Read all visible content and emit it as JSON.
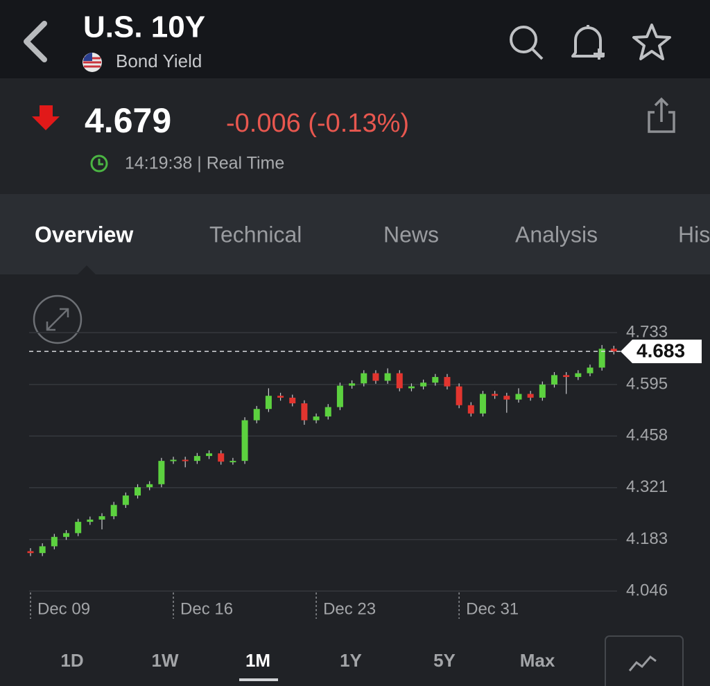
{
  "header": {
    "title": "U.S. 10Y",
    "subtitle": "Bond Yield"
  },
  "quote": {
    "price": "4.679",
    "change": "-0.006 (-0.13%)",
    "time": "14:19:38 | Real Time"
  },
  "tabs": [
    "Overview",
    "Technical",
    "News",
    "Analysis",
    "His"
  ],
  "ranges": [
    "1D",
    "1W",
    "1M",
    "1Y",
    "5Y",
    "Max"
  ],
  "chart_data": {
    "type": "candlestick",
    "categories": [
      "Dec 09",
      null,
      null,
      null,
      null,
      null,
      null,
      null,
      null,
      null,
      null,
      null,
      "Dec 16",
      null,
      null,
      null,
      null,
      null,
      null,
      null,
      null,
      null,
      null,
      null,
      "Dec 23",
      null,
      null,
      null,
      null,
      null,
      null,
      null,
      null,
      null,
      null,
      null,
      "Dec 31",
      null,
      null,
      null,
      null,
      null,
      null,
      null,
      null,
      null,
      null,
      null,
      null,
      null
    ],
    "open": [
      4.152,
      4.147,
      4.165,
      4.19,
      4.2,
      4.23,
      4.236,
      4.245,
      4.275,
      4.3,
      4.322,
      4.33,
      4.392,
      4.395,
      4.392,
      4.405,
      4.412,
      4.39,
      4.392,
      4.5,
      4.53,
      4.565,
      4.56,
      4.545,
      4.5,
      4.51,
      4.535,
      4.592,
      4.598,
      4.625,
      4.605,
      4.625,
      4.585,
      4.59,
      4.6,
      4.615,
      4.59,
      4.54,
      4.518,
      4.57,
      4.565,
      4.555,
      4.57,
      4.56,
      4.595,
      4.62,
      4.615,
      4.625,
      4.64,
      4.69
    ],
    "high": [
      4.16,
      4.173,
      4.198,
      4.208,
      4.238,
      4.244,
      4.253,
      4.283,
      4.308,
      4.33,
      4.338,
      4.4,
      4.403,
      4.403,
      4.413,
      4.42,
      4.42,
      4.4,
      4.508,
      4.538,
      4.585,
      4.573,
      4.568,
      4.553,
      4.518,
      4.543,
      4.6,
      4.606,
      4.633,
      4.633,
      4.638,
      4.633,
      4.598,
      4.608,
      4.623,
      4.623,
      4.598,
      4.548,
      4.578,
      4.578,
      4.573,
      4.585,
      4.578,
      4.603,
      4.628,
      4.628,
      4.633,
      4.648,
      4.7,
      4.698
    ],
    "low": [
      4.139,
      4.139,
      4.157,
      4.182,
      4.192,
      4.222,
      4.21,
      4.237,
      4.267,
      4.292,
      4.314,
      4.322,
      4.384,
      4.375,
      4.384,
      4.397,
      4.382,
      4.382,
      4.384,
      4.492,
      4.522,
      4.552,
      4.537,
      4.488,
      4.492,
      4.502,
      4.527,
      4.584,
      4.59,
      4.597,
      4.597,
      4.577,
      4.577,
      4.582,
      4.592,
      4.582,
      4.532,
      4.51,
      4.51,
      4.557,
      4.52,
      4.547,
      4.552,
      4.552,
      4.587,
      4.57,
      4.607,
      4.617,
      4.632,
      4.675
    ],
    "close": [
      4.147,
      4.165,
      4.19,
      4.2,
      4.23,
      4.236,
      4.245,
      4.275,
      4.3,
      4.322,
      4.33,
      4.392,
      4.395,
      4.392,
      4.405,
      4.412,
      4.39,
      4.392,
      4.5,
      4.53,
      4.565,
      4.56,
      4.545,
      4.5,
      4.51,
      4.535,
      4.592,
      4.598,
      4.625,
      4.605,
      4.625,
      4.585,
      4.59,
      4.6,
      4.615,
      4.59,
      4.54,
      4.518,
      4.57,
      4.565,
      4.555,
      4.57,
      4.56,
      4.595,
      4.62,
      4.615,
      4.625,
      4.64,
      4.69,
      4.683
    ],
    "up_color": "#5cd13f",
    "down_color": "#e2352f",
    "ylim": [
      4.046,
      4.733
    ],
    "yticks": [
      4.733,
      4.595,
      4.458,
      4.321,
      4.183,
      4.046
    ],
    "grid": true,
    "last_value": 4.683
  }
}
